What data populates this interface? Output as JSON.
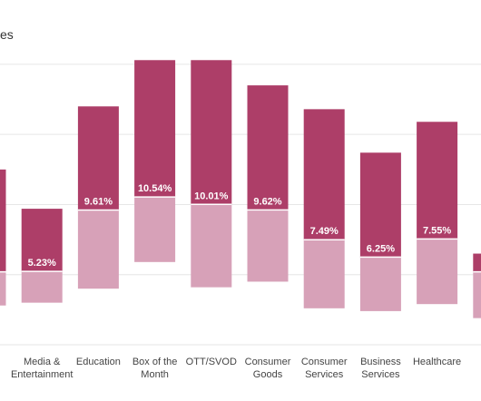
{
  "title_fragment": "es",
  "colors": {
    "upper": "#ad3e68",
    "lower": "#d7a1b8",
    "grid": "#e6e6e6",
    "label": "#444444",
    "data_label": "#ffffff"
  },
  "chart_data": {
    "type": "bar",
    "subtype": "floating-stacked-range",
    "grid": true,
    "y_axis_visible": false,
    "categories": [
      "",
      "Media & Entertainment",
      "Education",
      "Box of the Month",
      "OTT/SVOD",
      "Consumer Goods",
      "Consumer Services",
      "Business Services",
      "Healthcare",
      ""
    ],
    "category_lines": [
      [],
      [
        "Media &",
        "Entertainment"
      ],
      [
        "Education"
      ],
      [
        "Box of the",
        "Month"
      ],
      [
        "OTT/SVOD"
      ],
      [
        "Consumer",
        "Goods"
      ],
      [
        "Consumer",
        "Services"
      ],
      [
        "Business",
        "Services"
      ],
      [
        "Healthcare"
      ],
      []
    ],
    "data_labels": [
      "",
      "5.23%",
      "9.61%",
      "10.54%",
      "10.01%",
      "9.62%",
      "7.49%",
      "6.25%",
      "7.55%",
      ""
    ],
    "series": [
      {
        "values_low": [
          2.8,
          3.0,
          4.0,
          5.9,
          4.1,
          4.5,
          2.6,
          2.4,
          2.9,
          1.9
        ]
      },
      {
        "values_mid": [
          5.2,
          5.23,
          9.61,
          10.54,
          10.01,
          9.62,
          7.49,
          6.25,
          7.55,
          5.2
        ]
      },
      {
        "values_high": [
          12.5,
          9.7,
          17.0,
          20.3,
          20.3,
          18.5,
          16.8,
          13.7,
          15.9,
          6.5
        ]
      }
    ],
    "ylim": [
      0,
      22
    ],
    "gridlines": [
      0,
      5,
      10,
      15,
      20
    ]
  }
}
